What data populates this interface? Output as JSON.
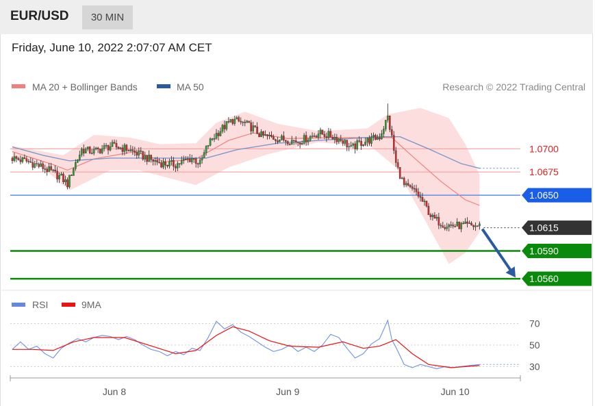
{
  "header": {
    "symbol": "EUR/USD",
    "timeframe": "30 MIN",
    "datetime": "Friday, June 10, 2022 2:07:07 AM CET"
  },
  "credit": "Research © 2022 Trading Central",
  "chart_data": [
    {
      "type": "candlestick",
      "legend": [
        {
          "name": "MA 20 + Bollinger Bands",
          "color": "#f08080"
        },
        {
          "name": "MA 50",
          "color": "#2a5aa0"
        }
      ],
      "ylim": [
        1.0552,
        1.0757
      ],
      "resistance_levels": [
        {
          "value": 1.07,
          "label": "1.0700",
          "color": "#e02020"
        },
        {
          "value": 1.0675,
          "label": "1.0675",
          "color": "#e02020"
        }
      ],
      "tagged_levels": [
        {
          "value": 1.065,
          "label": "1.0650",
          "color": "#1a5ee8"
        },
        {
          "value": 1.0615,
          "label": "1.0615",
          "color": "#333333"
        },
        {
          "value": 1.059,
          "label": "1.0590",
          "color": "#0a8a0a"
        },
        {
          "value": 1.056,
          "label": "1.0560",
          "color": "#0a8a0a"
        }
      ],
      "forecast_arrow": {
        "from": 1.0615,
        "to": 1.056
      },
      "close_path": [
        [
          0,
          1.069
        ],
        [
          8,
          1.0686
        ],
        [
          16,
          1.0679
        ],
        [
          24,
          1.0669
        ],
        [
          27,
          1.0662
        ],
        [
          30,
          1.068
        ],
        [
          34,
          1.0699
        ],
        [
          40,
          1.0697
        ],
        [
          48,
          1.0703
        ],
        [
          56,
          1.07
        ],
        [
          62,
          1.0694
        ],
        [
          68,
          1.0688
        ],
        [
          74,
          1.0684
        ],
        [
          80,
          1.0683
        ],
        [
          88,
          1.069
        ],
        [
          92,
          1.0684
        ],
        [
          96,
          1.0705
        ],
        [
          100,
          1.0716
        ],
        [
          104,
          1.0724
        ],
        [
          108,
          1.0731
        ],
        [
          114,
          1.0727
        ],
        [
          118,
          1.0722
        ],
        [
          122,
          1.0714
        ],
        [
          130,
          1.0711
        ],
        [
          140,
          1.0708
        ],
        [
          145,
          1.0712
        ],
        [
          150,
          1.0717
        ],
        [
          156,
          1.0714
        ],
        [
          162,
          1.0709
        ],
        [
          166,
          1.07
        ],
        [
          170,
          1.0706
        ],
        [
          176,
          1.071
        ],
        [
          180,
          1.0713
        ],
        [
          184,
          1.0734
        ],
        [
          186,
          1.0712
        ],
        [
          188,
          1.0684
        ],
        [
          192,
          1.066
        ],
        [
          198,
          1.0653
        ],
        [
          202,
          1.064
        ],
        [
          206,
          1.0625
        ],
        [
          212,
          1.0618
        ],
        [
          220,
          1.0617
        ],
        [
          229,
          1.0617
        ]
      ],
      "ma20": [
        [
          0,
          1.0697
        ],
        [
          20,
          1.0683
        ],
        [
          27,
          1.0677
        ],
        [
          40,
          1.0689
        ],
        [
          60,
          1.0697
        ],
        [
          75,
          1.0686
        ],
        [
          90,
          1.0689
        ],
        [
          106,
          1.0709
        ],
        [
          118,
          1.0717
        ],
        [
          135,
          1.0711
        ],
        [
          160,
          1.0712
        ],
        [
          186,
          1.0712
        ],
        [
          196,
          1.0692
        ],
        [
          210,
          1.0665
        ],
        [
          222,
          1.0645
        ],
        [
          229,
          1.0639
        ]
      ],
      "bb_upper": [
        [
          0,
          1.0703
        ],
        [
          25,
          1.0693
        ],
        [
          40,
          1.0715
        ],
        [
          58,
          1.0712
        ],
        [
          72,
          1.0705
        ],
        [
          90,
          1.0706
        ],
        [
          100,
          1.0728
        ],
        [
          114,
          1.074
        ],
        [
          130,
          1.0727
        ],
        [
          150,
          1.0719
        ],
        [
          174,
          1.0722
        ],
        [
          184,
          1.0737
        ],
        [
          200,
          1.0744
        ],
        [
          214,
          1.0733
        ],
        [
          222,
          1.0705
        ],
        [
          229,
          1.0672
        ]
      ],
      "bb_lower": [
        [
          0,
          1.0689
        ],
        [
          12,
          1.0685
        ],
        [
          28,
          1.0655
        ],
        [
          48,
          1.0677
        ],
        [
          62,
          1.0677
        ],
        [
          74,
          1.067
        ],
        [
          90,
          1.0661
        ],
        [
          106,
          1.068
        ],
        [
          125,
          1.0694
        ],
        [
          150,
          1.0707
        ],
        [
          176,
          1.0702
        ],
        [
          188,
          1.068
        ],
        [
          198,
          1.064
        ],
        [
          208,
          1.06
        ],
        [
          214,
          1.0576
        ],
        [
          222,
          1.0588
        ],
        [
          229,
          1.061
        ]
      ],
      "ma50": [
        [
          0,
          1.0702
        ],
        [
          15,
          1.0693
        ],
        [
          28,
          1.0687
        ],
        [
          48,
          1.069
        ],
        [
          75,
          1.069
        ],
        [
          95,
          1.069
        ],
        [
          110,
          1.0699
        ],
        [
          130,
          1.0706
        ],
        [
          150,
          1.0709
        ],
        [
          180,
          1.0713
        ],
        [
          190,
          1.0713
        ],
        [
          205,
          1.0699
        ],
        [
          220,
          1.0684
        ],
        [
          229,
          1.0679
        ]
      ],
      "last_ma50": 1.0679
    },
    {
      "type": "line",
      "legend": [
        {
          "name": "RSI",
          "color": "#6688dd"
        },
        {
          "name": "9MA",
          "color": "#ee1111"
        }
      ],
      "ylim": [
        22,
        78
      ],
      "yticks": [
        70,
        50,
        30
      ],
      "xticks": [
        {
          "label": "Jun 8",
          "index": 50
        },
        {
          "label": "Jun 9",
          "index": 135
        },
        {
          "label": "Jun 10",
          "index": 217
        }
      ],
      "rsi": [
        [
          0,
          46
        ],
        [
          4,
          53
        ],
        [
          8,
          46
        ],
        [
          12,
          49
        ],
        [
          16,
          42
        ],
        [
          20,
          38
        ],
        [
          24,
          47
        ],
        [
          28,
          52
        ],
        [
          32,
          56
        ],
        [
          36,
          53
        ],
        [
          40,
          57
        ],
        [
          44,
          59
        ],
        [
          48,
          58
        ],
        [
          52,
          55
        ],
        [
          56,
          58
        ],
        [
          60,
          55
        ],
        [
          64,
          50
        ],
        [
          68,
          46
        ],
        [
          72,
          44
        ],
        [
          76,
          40
        ],
        [
          80,
          44
        ],
        [
          84,
          41
        ],
        [
          88,
          47
        ],
        [
          92,
          45
        ],
        [
          96,
          57
        ],
        [
          100,
          72
        ],
        [
          104,
          65
        ],
        [
          108,
          69
        ],
        [
          112,
          62
        ],
        [
          116,
          58
        ],
        [
          120,
          53
        ],
        [
          124,
          48
        ],
        [
          128,
          44
        ],
        [
          132,
          46
        ],
        [
          136,
          50
        ],
        [
          140,
          44
        ],
        [
          144,
          48
        ],
        [
          148,
          44
        ],
        [
          152,
          50
        ],
        [
          156,
          60
        ],
        [
          160,
          57
        ],
        [
          164,
          47
        ],
        [
          168,
          38
        ],
        [
          172,
          42
        ],
        [
          176,
          51
        ],
        [
          180,
          56
        ],
        [
          184,
          73
        ],
        [
          186,
          55
        ],
        [
          188,
          48
        ],
        [
          192,
          32
        ],
        [
          196,
          29
        ],
        [
          200,
          32
        ],
        [
          204,
          30
        ],
        [
          208,
          28
        ],
        [
          212,
          30
        ],
        [
          216,
          29
        ],
        [
          220,
          30
        ],
        [
          224,
          31
        ],
        [
          229,
          32
        ]
      ],
      "ma9": [
        [
          0,
          46
        ],
        [
          10,
          46
        ],
        [
          20,
          45
        ],
        [
          30,
          53
        ],
        [
          40,
          57
        ],
        [
          55,
          57
        ],
        [
          70,
          48
        ],
        [
          80,
          42
        ],
        [
          90,
          45
        ],
        [
          100,
          59
        ],
        [
          108,
          67
        ],
        [
          116,
          63
        ],
        [
          126,
          54
        ],
        [
          136,
          49
        ],
        [
          150,
          48
        ],
        [
          162,
          53
        ],
        [
          172,
          47
        ],
        [
          180,
          49
        ],
        [
          188,
          55
        ],
        [
          196,
          42
        ],
        [
          204,
          32
        ],
        [
          215,
          29
        ],
        [
          229,
          31
        ]
      ],
      "last_rsi": 32
    }
  ]
}
